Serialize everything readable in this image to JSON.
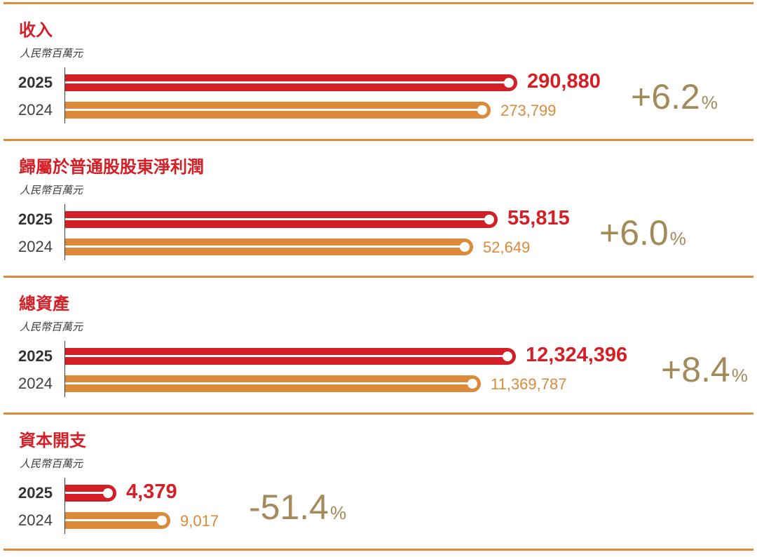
{
  "colors": {
    "current_year": "#d41f26",
    "prior_year": "#dc8a3a",
    "change_text": "#a38a58",
    "divider": "#dc8a3a"
  },
  "chart_data": [
    {
      "type": "bar",
      "orientation": "horizontal",
      "title": "收入",
      "unit": "人民幣百萬元",
      "categories": [
        "2025",
        "2024"
      ],
      "values": [
        290880,
        273799
      ],
      "value_labels": [
        "290,880",
        "273,799"
      ],
      "change": {
        "sign": "+",
        "number": "6.2",
        "percent": "%"
      }
    },
    {
      "type": "bar",
      "orientation": "horizontal",
      "title": "歸屬於普通股股東淨利潤",
      "unit": "人民幣百萬元",
      "categories": [
        "2025",
        "2024"
      ],
      "values": [
        55815,
        52649
      ],
      "value_labels": [
        "55,815",
        "52,649"
      ],
      "change": {
        "sign": "+",
        "number": "6.0",
        "percent": "%"
      }
    },
    {
      "type": "bar",
      "orientation": "horizontal",
      "title": "總資產",
      "unit": "人民幣百萬元",
      "categories": [
        "2025",
        "2024"
      ],
      "values": [
        12324396,
        11369787
      ],
      "value_labels": [
        "12,324,396",
        "11,369,787"
      ],
      "change": {
        "sign": "+",
        "number": "8.4",
        "percent": "%"
      }
    },
    {
      "type": "bar",
      "orientation": "horizontal",
      "title": "資本開支",
      "unit": "人民幣百萬元",
      "categories": [
        "2025",
        "2024"
      ],
      "values": [
        4379,
        9017
      ],
      "value_labels": [
        "4,379",
        "9,017"
      ],
      "change": {
        "sign": "-",
        "number": "51.4",
        "percent": "%"
      }
    }
  ]
}
